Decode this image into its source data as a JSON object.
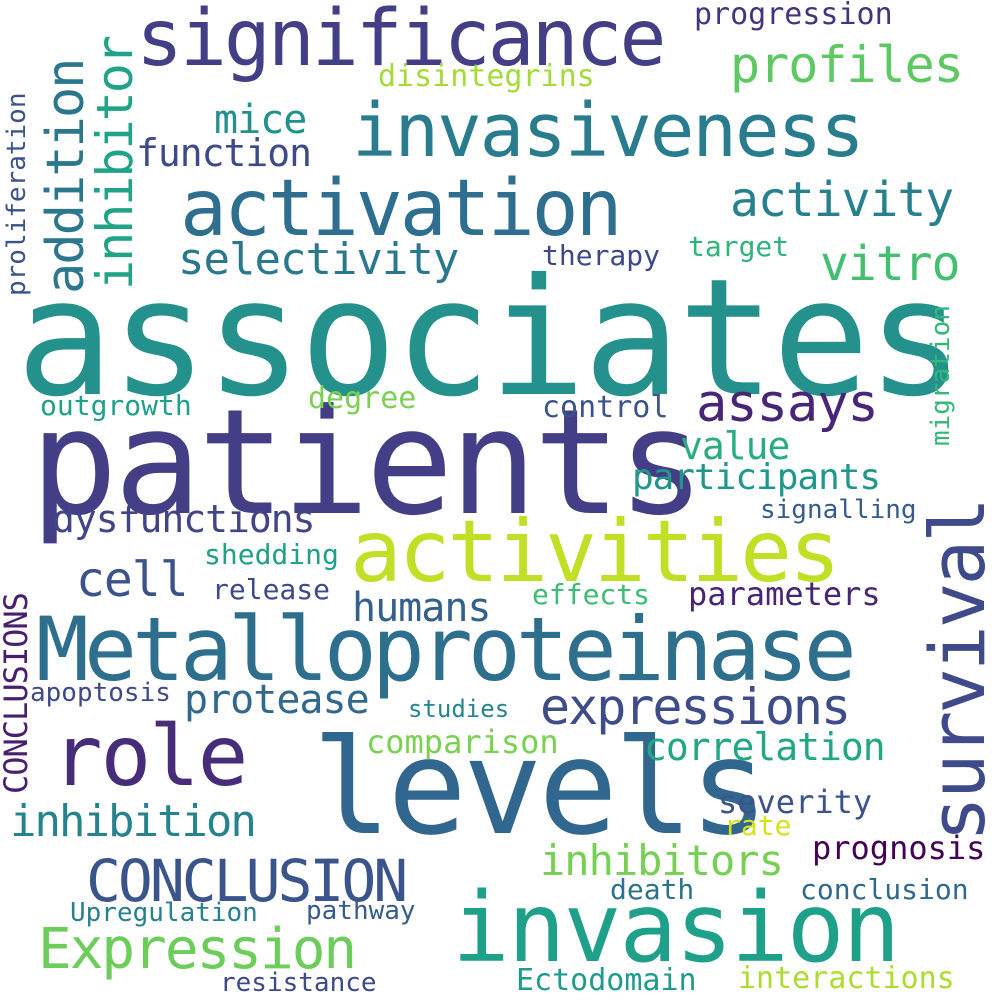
{
  "words": [
    {
      "text": "associates",
      "color": "#25918c"
    },
    {
      "text": "patients",
      "color": "#433e85"
    },
    {
      "text": "levels",
      "color": "#31668e"
    },
    {
      "text": "Metalloproteinase",
      "color": "#2e6f8e"
    },
    {
      "text": "invasion",
      "color": "#1fa088"
    },
    {
      "text": "activities",
      "color": "#c0df25"
    },
    {
      "text": "significance",
      "color": "#433e85"
    },
    {
      "text": "activation",
      "color": "#2e6e8e"
    },
    {
      "text": "invasiveness",
      "color": "#287c8e"
    },
    {
      "text": "survival",
      "color": "#3e4a89"
    },
    {
      "text": "role",
      "color": "#472c7a"
    },
    {
      "text": "CONCLUSION",
      "color": "#3a548c"
    },
    {
      "text": "Expression",
      "color": "#6ccd5a"
    },
    {
      "text": "addition",
      "color": "#2a778e"
    },
    {
      "text": "inhibitor",
      "color": "#20a386"
    },
    {
      "text": "expressions",
      "color": "#3e4c8a"
    },
    {
      "text": "profiles",
      "color": "#5ec962"
    },
    {
      "text": "activity",
      "color": "#26818e"
    },
    {
      "text": "assays",
      "color": "#482677"
    },
    {
      "text": "vitro",
      "color": "#44bf70"
    },
    {
      "text": "selectivity",
      "color": "#2a788e"
    },
    {
      "text": "inhibitors",
      "color": "#75d054"
    },
    {
      "text": "inhibition",
      "color": "#25838e"
    },
    {
      "text": "cell",
      "color": "#3b528b"
    },
    {
      "text": "protease",
      "color": "#31688e"
    },
    {
      "text": "correlation",
      "color": "#22a785"
    },
    {
      "text": "dysfunctions",
      "color": "#414487"
    },
    {
      "text": "humans",
      "color": "#34608d"
    },
    {
      "text": "participants",
      "color": "#1f988b"
    },
    {
      "text": "value",
      "color": "#27ad81"
    },
    {
      "text": "function",
      "color": "#3e4989"
    },
    {
      "text": "mice",
      "color": "#21918c"
    },
    {
      "text": "CONCLUSIONS",
      "color": "#481f70"
    },
    {
      "text": "progression",
      "color": "#46337f"
    },
    {
      "text": "disintegrins",
      "color": "#a5db36"
    },
    {
      "text": "therapy",
      "color": "#3f4788"
    },
    {
      "text": "target",
      "color": "#2fb47c"
    },
    {
      "text": "proliferation",
      "color": "#3b528b"
    },
    {
      "text": "migration",
      "color": "#35b779"
    },
    {
      "text": "outgrowth",
      "color": "#1fa088"
    },
    {
      "text": "degree",
      "color": "#7ad151"
    },
    {
      "text": "control",
      "color": "#3b528b"
    },
    {
      "text": "signalling",
      "color": "#365c8d"
    },
    {
      "text": "shedding",
      "color": "#1fa088"
    },
    {
      "text": "release",
      "color": "#3e4989"
    },
    {
      "text": "effects",
      "color": "#3dbc74"
    },
    {
      "text": "parameters",
      "color": "#482475"
    },
    {
      "text": "apoptosis",
      "color": "#3e4989"
    },
    {
      "text": "studies",
      "color": "#25858e"
    },
    {
      "text": "comparison",
      "color": "#7ad151"
    },
    {
      "text": "severity",
      "color": "#3b528b"
    },
    {
      "text": "rate",
      "color": "#d8e219"
    },
    {
      "text": "prognosis",
      "color": "#440154"
    },
    {
      "text": "death",
      "color": "#2c728e"
    },
    {
      "text": "conclusion",
      "color": "#31688e"
    },
    {
      "text": "Upregulation",
      "color": "#26818e"
    },
    {
      "text": "pathway",
      "color": "#365c8d"
    },
    {
      "text": "resistance",
      "color": "#3e4989"
    },
    {
      "text": "Ectodomain",
      "color": "#1e9b8a"
    },
    {
      "text": "interactions",
      "color": "#addc30"
    }
  ]
}
